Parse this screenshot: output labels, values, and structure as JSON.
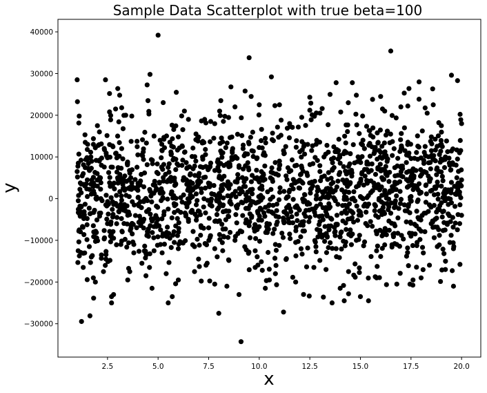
{
  "chart_data": {
    "type": "scatter",
    "title": "Sample Data Scatterplot with true beta=100",
    "xlabel": "x",
    "ylabel": "y",
    "xlim": [
      0.05,
      20.95
    ],
    "ylim": [
      -38000,
      43000
    ],
    "xticks": [
      2.5,
      5.0,
      7.5,
      10.0,
      12.5,
      15.0,
      17.5,
      20.0
    ],
    "xtick_labels": [
      "2.5",
      "5.0",
      "7.5",
      "10.0",
      "12.5",
      "15.0",
      "17.5",
      "20.0"
    ],
    "yticks": [
      -30000,
      -20000,
      -10000,
      0,
      10000,
      20000,
      30000,
      40000
    ],
    "ytick_labels": [
      "−30000",
      "−20000",
      "−10000",
      "0",
      "10000",
      "20000",
      "30000",
      "40000"
    ],
    "grid": false,
    "marker_color": "#000000",
    "x_range_of_points": [
      1.0,
      20.0
    ],
    "series": [
      {
        "values_note_free": true,
        "points": [
          [
            1.0,
            28500
          ],
          [
            1.1,
            19800
          ],
          [
            1.0,
            6500
          ],
          [
            1.05,
            -12500
          ],
          [
            1.1,
            -7500
          ],
          [
            1.2,
            3500
          ],
          [
            1.3,
            6000
          ],
          [
            1.4,
            13500
          ],
          [
            1.5,
            9500
          ],
          [
            1.3,
            -16500
          ],
          [
            1.6,
            -11500
          ],
          [
            1.7,
            -14000
          ],
          [
            1.8,
            -19000
          ],
          [
            1.9,
            -20000
          ],
          [
            2.0,
            17500
          ],
          [
            2.1,
            16000
          ],
          [
            2.2,
            -13500
          ],
          [
            2.3,
            -17500
          ],
          [
            2.4,
            28500
          ],
          [
            2.5,
            9800
          ],
          [
            2.6,
            25200
          ],
          [
            2.6,
            20800
          ],
          [
            2.7,
            -23500
          ],
          [
            2.7,
            -25000
          ],
          [
            2.8,
            -23000
          ],
          [
            2.9,
            21500
          ],
          [
            3.0,
            15000
          ],
          [
            3.1,
            24800
          ],
          [
            3.2,
            21800
          ],
          [
            3.4,
            20000
          ],
          [
            3.5,
            -19500
          ],
          [
            3.6,
            -17500
          ],
          [
            3.7,
            19800
          ],
          [
            3.8,
            -13000
          ],
          [
            4.0,
            10500
          ],
          [
            4.2,
            -15500
          ],
          [
            4.4,
            -18500
          ],
          [
            4.5,
            23500
          ],
          [
            4.6,
            29800
          ],
          [
            4.7,
            -21500
          ],
          [
            4.8,
            15000
          ],
          [
            5.0,
            39200
          ],
          [
            5.1,
            14000
          ],
          [
            5.2,
            -13000
          ],
          [
            5.4,
            -18000
          ],
          [
            5.5,
            -25000
          ],
          [
            5.7,
            -23500
          ],
          [
            5.9,
            25500
          ],
          [
            6.0,
            -19500
          ],
          [
            6.3,
            21000
          ],
          [
            6.5,
            19000
          ],
          [
            6.8,
            -17500
          ],
          [
            7.0,
            -14500
          ],
          [
            7.3,
            19000
          ],
          [
            7.6,
            18500
          ],
          [
            7.8,
            -20500
          ],
          [
            8.0,
            -27500
          ],
          [
            8.1,
            23500
          ],
          [
            8.4,
            -21000
          ],
          [
            8.6,
            26800
          ],
          [
            8.8,
            22000
          ],
          [
            9.0,
            -23000
          ],
          [
            9.1,
            -34300
          ],
          [
            9.3,
            25800
          ],
          [
            9.5,
            33800
          ],
          [
            9.6,
            24500
          ],
          [
            9.8,
            -16500
          ],
          [
            10.0,
            22500
          ],
          [
            10.3,
            -21500
          ],
          [
            10.5,
            -19500
          ],
          [
            10.6,
            29200
          ],
          [
            10.8,
            -18000
          ],
          [
            11.0,
            22500
          ],
          [
            11.2,
            -27200
          ],
          [
            11.5,
            18000
          ],
          [
            11.8,
            -20000
          ],
          [
            12.1,
            19500
          ],
          [
            12.5,
            21200
          ],
          [
            12.7,
            -16500
          ],
          [
            13.0,
            20500
          ],
          [
            13.3,
            -17000
          ],
          [
            13.5,
            25000
          ],
          [
            13.6,
            -25000
          ],
          [
            13.8,
            27800
          ],
          [
            14.0,
            -21500
          ],
          [
            14.2,
            -24500
          ],
          [
            14.4,
            23000
          ],
          [
            14.6,
            27800
          ],
          [
            14.8,
            24800
          ],
          [
            15.0,
            -23500
          ],
          [
            15.4,
            -24500
          ],
          [
            15.6,
            23800
          ],
          [
            15.8,
            -19000
          ],
          [
            16.0,
            24500
          ],
          [
            16.2,
            21000
          ],
          [
            16.5,
            35400
          ],
          [
            16.8,
            -20500
          ],
          [
            17.0,
            22000
          ],
          [
            17.4,
            26400
          ],
          [
            17.6,
            -19500
          ],
          [
            17.9,
            28000
          ],
          [
            18.0,
            -19000
          ],
          [
            18.3,
            20500
          ],
          [
            18.6,
            22500
          ],
          [
            19.0,
            17500
          ],
          [
            19.2,
            -17000
          ],
          [
            19.5,
            29600
          ],
          [
            19.6,
            -21000
          ],
          [
            19.8,
            28300
          ],
          [
            20.0,
            18000
          ],
          [
            2.0,
            3000
          ],
          [
            2.1,
            -3500
          ],
          [
            2.5,
            -6000
          ],
          [
            3.0,
            5000
          ],
          [
            3.5,
            -4000
          ],
          [
            4.0,
            2000
          ],
          [
            4.5,
            -8000
          ],
          [
            5.0,
            6000
          ],
          [
            5.5,
            -2500
          ],
          [
            6.0,
            8000
          ],
          [
            6.5,
            -5000
          ],
          [
            7.0,
            3500
          ],
          [
            7.5,
            -7000
          ],
          [
            8.0,
            1000
          ],
          [
            8.5,
            -3000
          ],
          [
            9.0,
            7500
          ],
          [
            9.5,
            -6500
          ],
          [
            10.0,
            4000
          ],
          [
            10.5,
            -1500
          ],
          [
            11.0,
            9000
          ],
          [
            11.5,
            -8500
          ],
          [
            12.0,
            2500
          ],
          [
            12.5,
            -4500
          ],
          [
            13.0,
            6500
          ],
          [
            13.5,
            -2000
          ],
          [
            14.0,
            8500
          ],
          [
            14.5,
            -7500
          ],
          [
            15.0,
            500
          ],
          [
            15.5,
            -5500
          ],
          [
            16.0,
            7000
          ],
          [
            16.5,
            -3500
          ],
          [
            17.0,
            5500
          ],
          [
            17.5,
            -9000
          ],
          [
            18.0,
            1500
          ],
          [
            18.5,
            -6000
          ],
          [
            19.0,
            3000
          ],
          [
            19.5,
            -1000
          ],
          [
            20.0,
            4500
          ],
          [
            20.0,
            -4000
          ],
          [
            19.8,
            9500
          ],
          [
            1.2,
            -2000
          ],
          [
            1.5,
            4500
          ],
          [
            1.8,
            -6500
          ],
          [
            2.2,
            8000
          ],
          [
            2.8,
            -9500
          ],
          [
            3.2,
            12000
          ],
          [
            3.8,
            -11000
          ],
          [
            4.2,
            10500
          ],
          [
            4.8,
            -12500
          ],
          [
            5.2,
            11500
          ],
          [
            5.8,
            -10500
          ],
          [
            6.2,
            12500
          ],
          [
            6.8,
            -11500
          ],
          [
            7.2,
            10000
          ],
          [
            7.8,
            -12000
          ],
          [
            8.2,
            11000
          ],
          [
            8.8,
            -10000
          ],
          [
            9.2,
            12000
          ],
          [
            9.8,
            -12500
          ],
          [
            10.2,
            10500
          ],
          [
            10.8,
            -11000
          ],
          [
            11.2,
            11500
          ],
          [
            11.8,
            -10500
          ],
          [
            12.2,
            12500
          ],
          [
            12.8,
            -11500
          ],
          [
            13.2,
            10000
          ],
          [
            13.8,
            -12000
          ],
          [
            14.2,
            11000
          ],
          [
            14.8,
            -10000
          ],
          [
            15.2,
            12000
          ],
          [
            15.8,
            -12500
          ],
          [
            16.2,
            10500
          ],
          [
            16.8,
            -11000
          ],
          [
            17.2,
            11500
          ],
          [
            17.8,
            -10500
          ],
          [
            18.2,
            12500
          ],
          [
            18.8,
            -11500
          ],
          [
            19.2,
            10000
          ],
          [
            19.6,
            -12000
          ],
          [
            19.9,
            11000
          ]
        ]
      }
    ]
  }
}
